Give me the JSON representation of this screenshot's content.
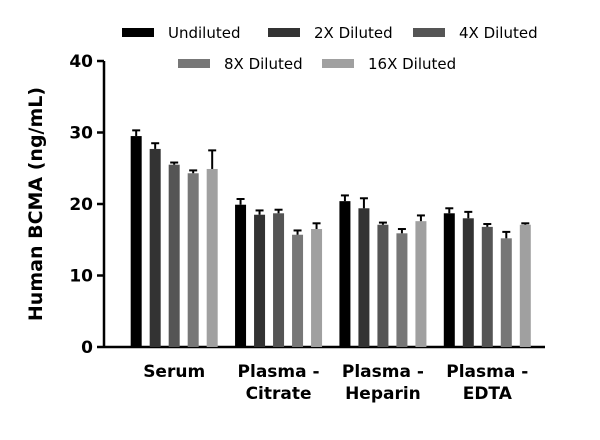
{
  "chart_data": {
    "type": "bar",
    "y_label": "Human BCMA (ng/mL)",
    "categories": [
      "Serum",
      "Plasma -\nCitrate",
      "Plasma -\nHeparin",
      "Plasma -\nEDTA"
    ],
    "series": [
      {
        "name": "Undiluted",
        "color": "#000000",
        "values": [
          29.5,
          19.9,
          20.4,
          18.7
        ],
        "errors": [
          0.8,
          0.8,
          0.8,
          0.7
        ]
      },
      {
        "name": "2X Diluted",
        "color": "#333333",
        "values": [
          27.7,
          18.5,
          19.4,
          18.0
        ],
        "errors": [
          0.8,
          0.6,
          1.4,
          0.9
        ]
      },
      {
        "name": "4X Diluted",
        "color": "#555555",
        "values": [
          25.5,
          18.7,
          17.1,
          16.8
        ],
        "errors": [
          0.3,
          0.5,
          0.3,
          0.4
        ]
      },
      {
        "name": "8X Diluted",
        "color": "#777777",
        "values": [
          24.3,
          15.7,
          15.9,
          15.2
        ],
        "errors": [
          0.4,
          0.6,
          0.6,
          0.9
        ]
      },
      {
        "name": "16X Diluted",
        "color": "#a0a0a0",
        "values": [
          24.9,
          16.5,
          17.6,
          17.1
        ],
        "errors": [
          2.6,
          0.8,
          0.8,
          0.2
        ]
      }
    ],
    "ylim": [
      0,
      40
    ],
    "yticks": [
      0,
      10,
      20,
      30,
      40
    ],
    "grid": false
  }
}
